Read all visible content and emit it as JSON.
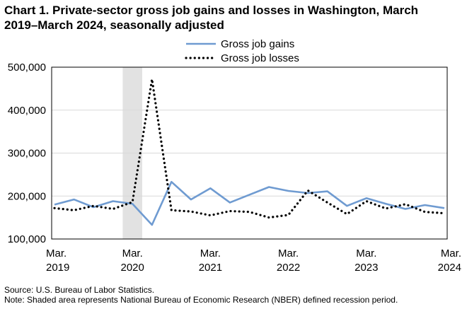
{
  "title_line1": "Chart 1. Private-sector gross job gains and losses in Washington, March",
  "title_line2": "2019–March 2024, seasonally adjusted",
  "source": "Source: U.S. Bureau of Labor Statistics.",
  "note": "Note: Shaded area represents National Bureau of Economic Research (NBER) defined recession period.",
  "colors": {
    "gains": "#6f9bd1",
    "losses": "#000000",
    "recession": "#e2e2e2",
    "grid": "#d9d9d9"
  },
  "chart_data": {
    "type": "line",
    "title": "Chart 1. Private-sector gross job gains and losses in Washington, March 2019–March 2024, seasonally adjusted",
    "ylim": [
      100000,
      500000
    ],
    "yticks": [
      100000,
      200000,
      300000,
      400000,
      500000
    ],
    "ytick_labels": [
      "100,000",
      "200,000",
      "300,000",
      "400,000",
      "500,000"
    ],
    "xtick_labels": [
      [
        "Mar.",
        "2019"
      ],
      [
        "Mar.",
        "2020"
      ],
      [
        "Mar.",
        "2021"
      ],
      [
        "Mar.",
        "2022"
      ],
      [
        "Mar.",
        "2023"
      ],
      [
        "Mar.",
        "2024"
      ]
    ],
    "x": [
      "Mar 2019",
      "Jun 2019",
      "Sep 2019",
      "Dec 2019",
      "Mar 2020",
      "Jun 2020",
      "Sep 2020",
      "Dec 2020",
      "Mar 2021",
      "Jun 2021",
      "Sep 2021",
      "Dec 2021",
      "Mar 2022",
      "Jun 2022",
      "Sep 2022",
      "Dec 2022",
      "Mar 2023",
      "Jun 2023",
      "Sep 2023",
      "Dec 2023",
      "Mar 2024"
    ],
    "recession": [
      "Dec 2019",
      "Mar 2020"
    ],
    "grid": true,
    "legend_position": "top",
    "series": [
      {
        "name": "Gross job gains",
        "style": "solid",
        "values": [
          180000,
          192000,
          174000,
          188000,
          182000,
          133000,
          233000,
          192000,
          218000,
          185000,
          203000,
          221000,
          212000,
          207000,
          211000,
          177000,
          195000,
          182000,
          170000,
          179000,
          172000
        ]
      },
      {
        "name": "Gross job losses",
        "style": "dotted",
        "values": [
          172000,
          167000,
          177000,
          170000,
          186000,
          472000,
          167000,
          164000,
          155000,
          165000,
          163000,
          150000,
          156000,
          213000,
          185000,
          158000,
          188000,
          171000,
          181000,
          163000,
          160000
        ]
      }
    ]
  }
}
